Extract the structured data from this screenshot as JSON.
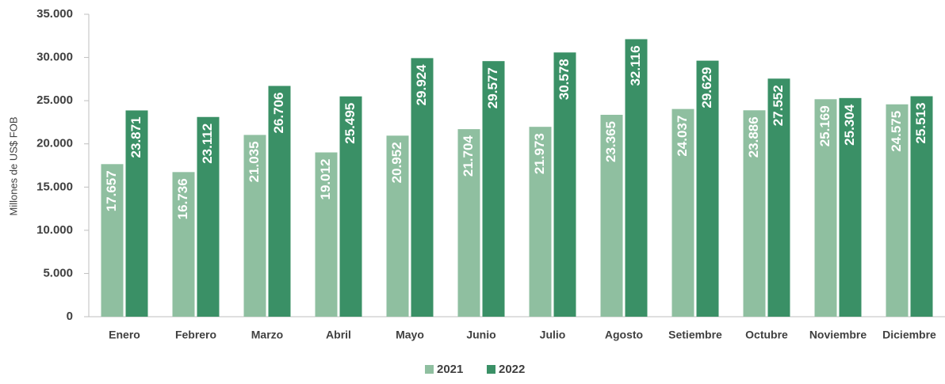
{
  "chart_data": {
    "type": "bar",
    "y_label": "Millones de US$ FOB",
    "categories": [
      "Enero",
      "Febrero",
      "Marzo",
      "Abril",
      "Mayo",
      "Junio",
      "Julio",
      "Agosto",
      "Setiembre",
      "Octubre",
      "Noviembre",
      "Diciembre"
    ],
    "series": [
      {
        "name": "2021",
        "color": "#8fbfa0",
        "values": [
          17657,
          16736,
          21035,
          19012,
          20952,
          21704,
          21973,
          23365,
          24037,
          23886,
          25169,
          24575
        ],
        "value_labels": [
          "17.657",
          "16.736",
          "21.035",
          "19.012",
          "20.952",
          "21.704",
          "21.973",
          "23.365",
          "24.037",
          "23.886",
          "25.169",
          "24.575"
        ]
      },
      {
        "name": "2022",
        "color": "#3a9066",
        "values": [
          23871,
          23112,
          26706,
          25495,
          29924,
          29577,
          30578,
          32116,
          29629,
          27552,
          25304,
          25513
        ],
        "value_labels": [
          "23.871",
          "23.112",
          "26.706",
          "25.495",
          "29.924",
          "29.577",
          "30.578",
          "32.116",
          "29.629",
          "27.552",
          "25.304",
          "25.513"
        ]
      }
    ],
    "ylim": [
      0,
      35000
    ],
    "yticks": [
      0,
      {
        "value": 5000,
        "label": "5.000"
      },
      {
        "value": 10000,
        "label": "10.000"
      },
      {
        "value": 15000,
        "label": "15.000"
      },
      {
        "value": 20000,
        "label": "20.000"
      },
      {
        "value": 25000,
        "label": "25.000"
      },
      {
        "value": 30000,
        "label": "30.000"
      },
      {
        "value": 35000,
        "label": "35.000"
      }
    ],
    "grid": false,
    "legend": "bottom"
  }
}
